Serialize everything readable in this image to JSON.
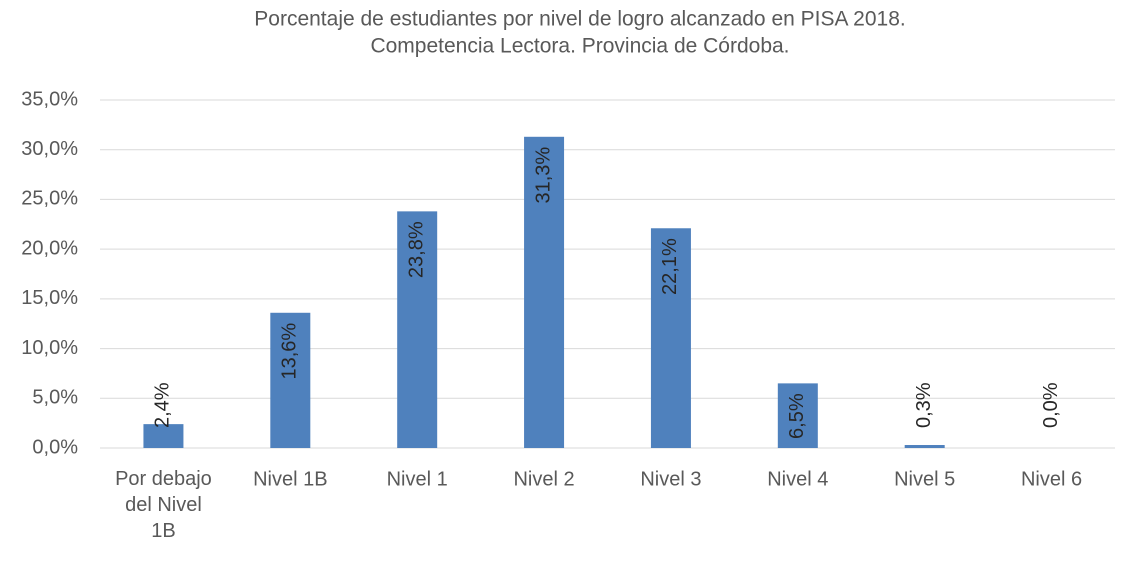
{
  "chart_data": {
    "type": "bar",
    "title": [
      "Porcentaje de estudiantes por nivel de logro alcanzado en PISA 2018.",
      "Competencia Lectora. Provincia de Córdoba."
    ],
    "categories": [
      "Por debajo del Nivel 1B",
      "Nivel 1B",
      "Nivel 1",
      "Nivel 2",
      "Nivel 3",
      "Nivel 4",
      "Nivel 5",
      "Nivel 6"
    ],
    "values": [
      2.4,
      13.6,
      23.8,
      31.3,
      22.1,
      6.5,
      0.3,
      0.0
    ],
    "value_labels": [
      "2,4%",
      "13,6%",
      "23,8%",
      "31,3%",
      "22,1%",
      "6,5%",
      "0,3%",
      "0,0%"
    ],
    "color": "#4f81bd",
    "ylim": [
      0,
      35
    ],
    "yticks": [
      {
        "value": 0,
        "label": "0,0%"
      },
      {
        "value": 5,
        "label": "5,0%"
      },
      {
        "value": 10,
        "label": "10,0%"
      },
      {
        "value": 15,
        "label": "15,0%"
      },
      {
        "value": 20,
        "label": "20,0%"
      },
      {
        "value": 25,
        "label": "25,0%"
      },
      {
        "value": 30,
        "label": "30,0%"
      },
      {
        "value": 35,
        "label": "35,0%"
      }
    ],
    "grid": true
  }
}
